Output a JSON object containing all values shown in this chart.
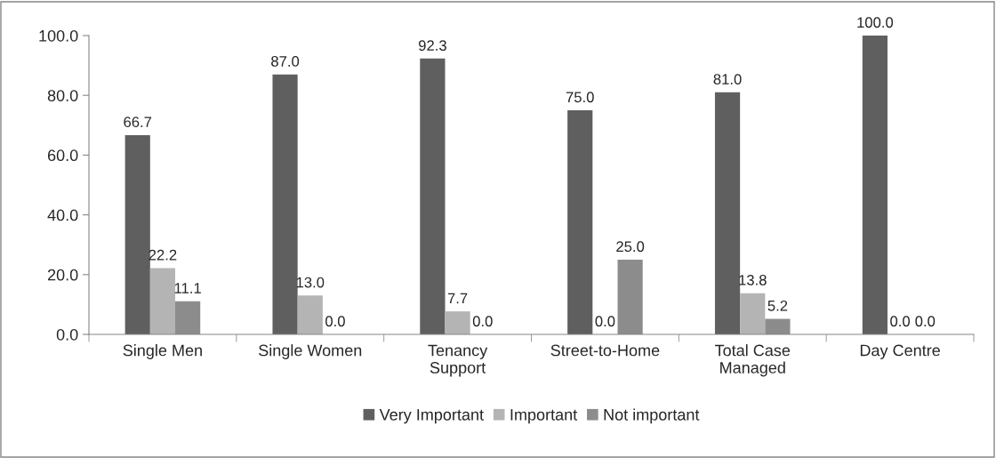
{
  "chart_data": {
    "type": "bar",
    "categories": [
      "Single Men",
      "Single Women",
      "Tenancy\nSupport",
      "Street-to-Home",
      "Total Case\nManaged",
      "Day Centre"
    ],
    "series": [
      {
        "name": "Very Important",
        "color": "#5f5f5f",
        "values": [
          66.7,
          87.0,
          92.3,
          75.0,
          81.0,
          100.0
        ]
      },
      {
        "name": "Important",
        "color": "#b4b4b4",
        "values": [
          22.2,
          13.0,
          7.7,
          0.0,
          13.8,
          0.0
        ]
      },
      {
        "name": "Not important",
        "color": "#8c8c8c",
        "values": [
          11.1,
          0.0,
          0.0,
          25.0,
          5.2,
          0.0
        ]
      }
    ],
    "value_labels": [
      [
        "66.7",
        "87.0",
        "92.3",
        "75.0",
        "81.0",
        "100.0"
      ],
      [
        "22.2",
        "13.0",
        "7.7",
        "0.0",
        "13.8",
        "0.0"
      ],
      [
        "11.1",
        "0.0",
        "0.0",
        "25.0",
        "5.2",
        "0.0"
      ]
    ],
    "ylim": [
      0,
      100
    ],
    "yticks": [
      {
        "value": 0,
        "label": "0.0"
      },
      {
        "value": 20,
        "label": "20.0"
      },
      {
        "value": 40,
        "label": "40.0"
      },
      {
        "value": 60,
        "label": "60.0"
      },
      {
        "value": 80,
        "label": "80.0"
      },
      {
        "value": 100,
        "label": "100.0"
      }
    ],
    "grid": false,
    "legend": "bottom"
  }
}
